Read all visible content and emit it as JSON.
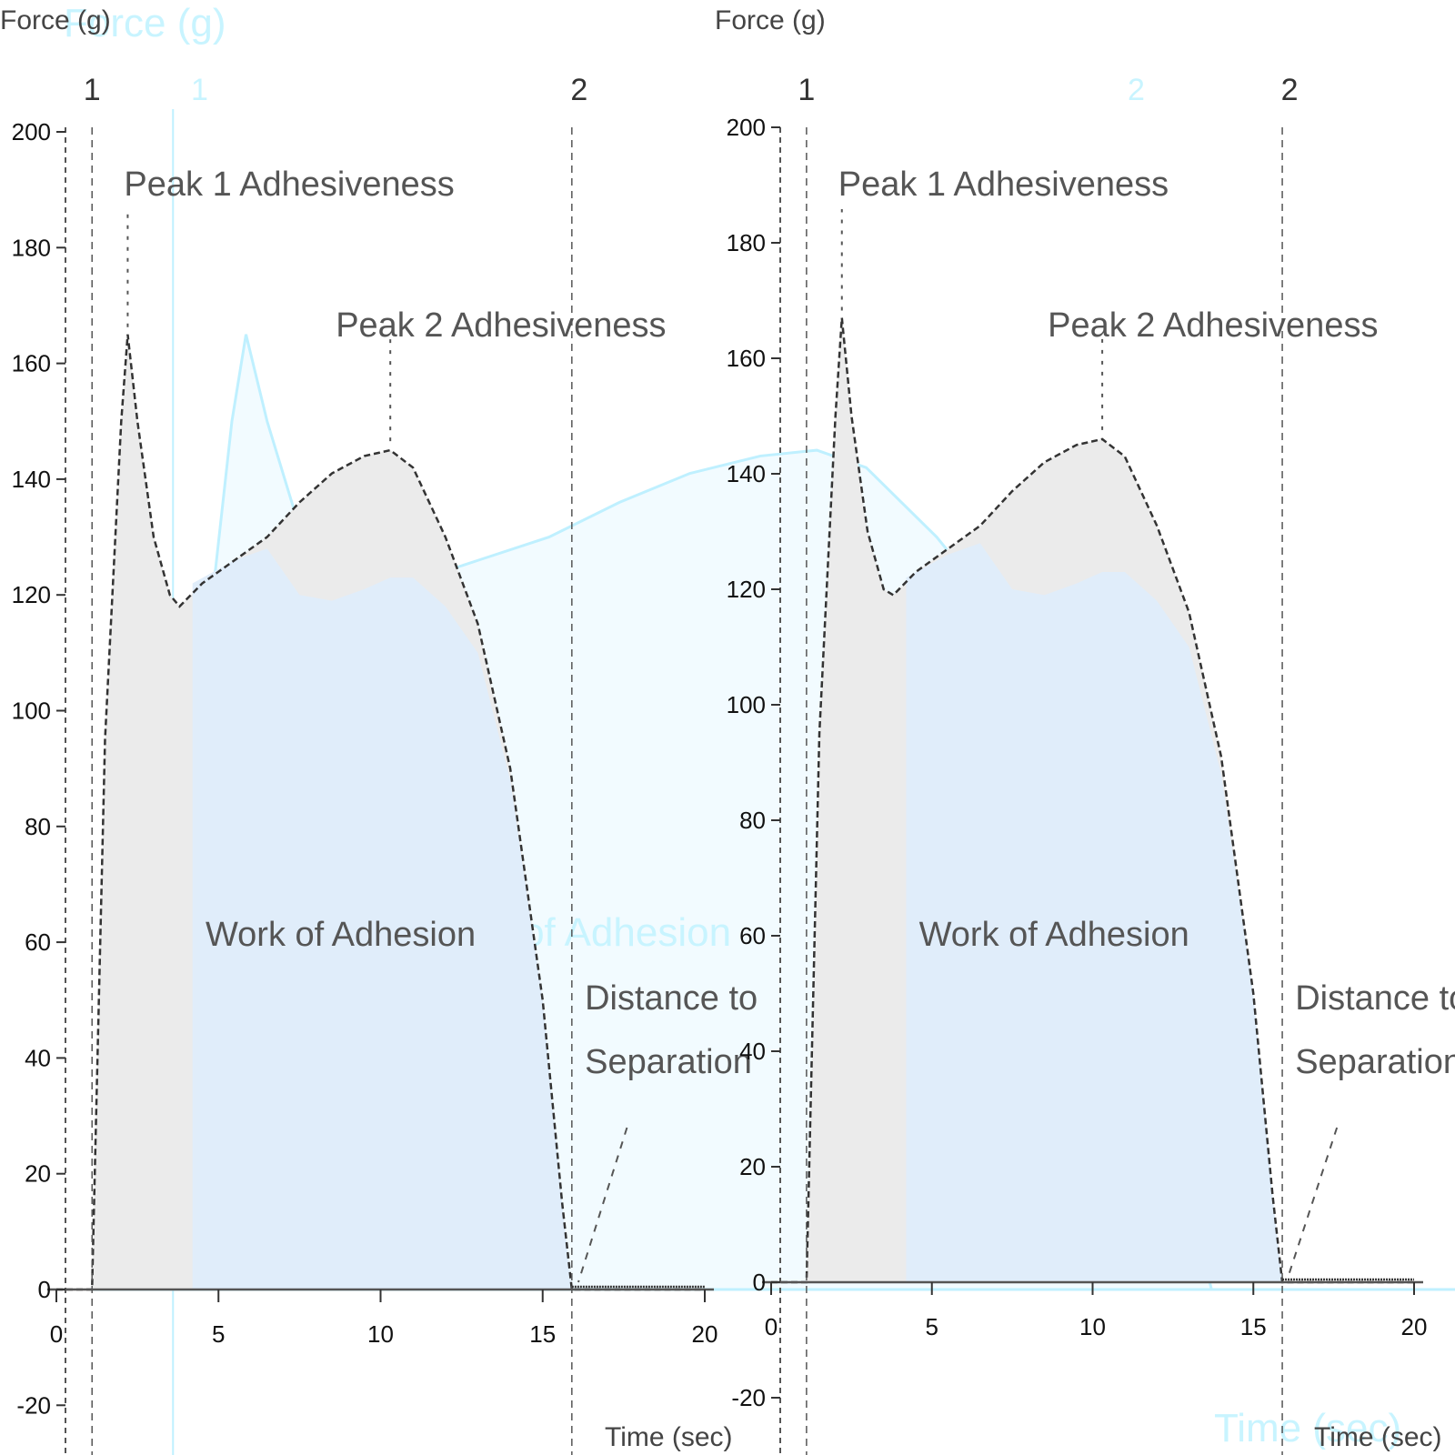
{
  "chart_data": [
    {
      "type": "area",
      "panel": "left",
      "title": "",
      "xlabel": "Time (sec)",
      "ylabel": "Force (g)",
      "xlim": [
        0,
        20
      ],
      "ylim": [
        -20,
        200
      ],
      "xticks": [
        0,
        5,
        10,
        15,
        20
      ],
      "yticks": [
        -20,
        0,
        20,
        40,
        60,
        80,
        100,
        120,
        140,
        160,
        180,
        200
      ],
      "grid": false,
      "series": [
        {
          "name": "Force",
          "x": [
            0,
            1.1,
            1.5,
            2.0,
            2.2,
            2.5,
            3.0,
            3.5,
            3.8,
            4.5,
            5.5,
            6.5,
            7.5,
            8.5,
            9.5,
            10.3,
            11.0,
            12.0,
            13.0,
            14.0,
            15.0,
            15.6,
            15.9,
            16.2,
            20
          ],
          "y": [
            0,
            0,
            95,
            150,
            165,
            150,
            130,
            120,
            118,
            122,
            126,
            130,
            136,
            141,
            144,
            145,
            142,
            130,
            115,
            90,
            50,
            15,
            0,
            0,
            0
          ]
        }
      ],
      "markers": [
        {
          "label": "1",
          "x": 1.1
        },
        {
          "label": "2",
          "x": 15.9
        }
      ],
      "annotations": [
        {
          "text": "Peak 1 Adhesiveness",
          "x": 2.2,
          "y": 165
        },
        {
          "text": "Peak 2 Adhesiveness",
          "x": 10.3,
          "y": 145
        },
        {
          "text": "Work of Adhesion",
          "x": 7.5,
          "y": 60
        },
        {
          "text": "Distance to Separation",
          "x": 17,
          "y": 45
        }
      ]
    },
    {
      "type": "area",
      "panel": "right",
      "title": "",
      "xlabel": "Time (sec)",
      "ylabel": "Force (g)",
      "xlim": [
        0,
        20
      ],
      "ylim": [
        -20,
        200
      ],
      "xticks": [
        0,
        5,
        10,
        15,
        20
      ],
      "yticks": [
        -20,
        0,
        20,
        40,
        60,
        80,
        100,
        120,
        140,
        160,
        180,
        200
      ],
      "grid": false,
      "series": [
        {
          "name": "Force",
          "x": [
            0,
            1.1,
            1.5,
            2.0,
            2.2,
            2.5,
            3.0,
            3.5,
            3.8,
            4.5,
            5.5,
            6.5,
            7.5,
            8.5,
            9.5,
            10.3,
            11.0,
            12.0,
            13.0,
            14.0,
            15.0,
            15.6,
            15.9,
            16.2,
            20
          ],
          "y": [
            0,
            0,
            95,
            150,
            167,
            150,
            130,
            120,
            119,
            123,
            127,
            131,
            137,
            142,
            145,
            146,
            143,
            131,
            116,
            91,
            50,
            15,
            0,
            0,
            0
          ]
        }
      ],
      "markers": [
        {
          "label": "1",
          "x": 1.1
        },
        {
          "label": "2",
          "x": 15.9
        }
      ],
      "annotations": [
        {
          "text": "Peak 1 Adhesiveness",
          "x": 2.2,
          "y": 167
        },
        {
          "text": "Peak 2 Adhesiveness",
          "x": 10.3,
          "y": 146
        },
        {
          "text": "Work of Adhesion",
          "x": 7.5,
          "y": 61
        },
        {
          "text": "Distance to Separation",
          "x": 17,
          "y": 45
        }
      ]
    },
    {
      "type": "area",
      "panel": "ghost-overlay",
      "xlabel": "Time (sec)",
      "ylabel": "Force (g)",
      "markers": [
        {
          "label": "1"
        },
        {
          "label": "2"
        }
      ],
      "annotations": [
        {
          "text": "Work of Adhesion"
        }
      ]
    }
  ],
  "labels": {
    "left": {
      "ylabel": "Force (g)",
      "xlabel": "Time (sec)",
      "peak1": "Peak 1 Adhesiveness",
      "peak2": "Peak 2 Adhesiveness",
      "work": "Work of Adhesion",
      "dist_line1": "Distance to",
      "dist_line2": "Separation",
      "marker1": "1",
      "marker2": "2"
    },
    "right": {
      "ylabel": "Force (g)",
      "xlabel": "Time (sec)",
      "peak1": "Peak 1 Adhesiveness",
      "peak2": "Peak 2 Adhesiveness",
      "work": "Work of Adhesion",
      "dist_line1": "Distance to",
      "dist_line2": "Separation",
      "marker1": "1",
      "marker2": "2"
    },
    "ghost": {
      "ylabel": "Force (g)",
      "xlabel": "Time (sec)",
      "work": "Work of Adhesion",
      "marker1": "1",
      "marker2": "2"
    }
  },
  "colors": {
    "area_fill": "#ebebeb",
    "work_fill": "#e0edfa",
    "line": "#333333",
    "ghost_line": "#bff0ff",
    "ghost_fill": "#f2fbff",
    "ghost_text": "#c8f4ff",
    "ylabel_blue": "#1a3c8c"
  }
}
